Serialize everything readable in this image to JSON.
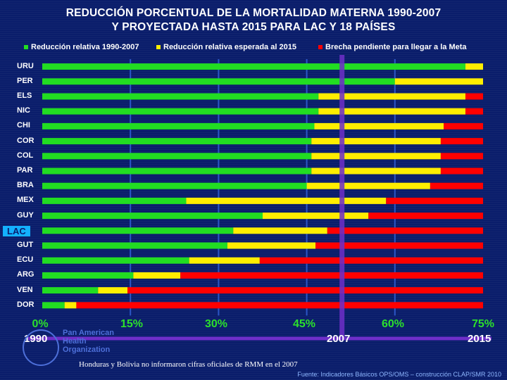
{
  "chart_data": {
    "type": "bar",
    "orientation": "horizontal",
    "stacked": true,
    "title": "REDUCCIÓN PORCENTUAL DE LA MORTALIDAD MATERNA 1990-2007",
    "subtitle": "Y PROYECTADA HASTA 2015 PARA LAC Y 18 PAÍSES",
    "categories": [
      "URU",
      "PER",
      "ELS",
      "NIC",
      "CHI",
      "COR",
      "COL",
      "PAR",
      "BRA",
      "MEX",
      "GUY",
      "LAC",
      "GUT",
      "ECU",
      "ARG",
      "VEN",
      "DOR"
    ],
    "series": [
      {
        "name": "Reducción relativa 1990-2007",
        "color": "#22dd22",
        "values": [
          72.0,
          60.0,
          47.0,
          47.0,
          46.3,
          45.8,
          45.8,
          45.8,
          45.0,
          24.5,
          37.5,
          32.5,
          31.5,
          25.0,
          15.5,
          9.5,
          3.8
        ]
      },
      {
        "name": "Reducción relativa esperada al 2015",
        "color": "#ffee00",
        "values": [
          3.0,
          15.0,
          25.0,
          25.0,
          22.0,
          22.0,
          22.0,
          22.0,
          21.0,
          34.0,
          18.0,
          16.0,
          15.0,
          12.0,
          8.0,
          5.0,
          2.0
        ]
      },
      {
        "name": "Brecha pendiente para llegar a la Meta",
        "color": "#ff0000",
        "values": [
          0.0,
          0.0,
          3.0,
          3.0,
          6.7,
          7.2,
          7.2,
          7.2,
          9.0,
          16.5,
          19.5,
          26.5,
          28.5,
          38.0,
          51.5,
          60.5,
          69.2
        ]
      }
    ],
    "highlighted_category": "LAC",
    "x_ticks": [
      "0%",
      "15%",
      "30%",
      "45%",
      "60%",
      "75%"
    ],
    "xlim": [
      0,
      75
    ],
    "grid": "vertical",
    "legend": "top",
    "markers": [
      {
        "label": "1990",
        "x": 0
      },
      {
        "label": "2007",
        "x": 51
      },
      {
        "label": "2015",
        "x": 75
      }
    ],
    "colors": {
      "background": "#0a1d6b",
      "grid": "#2b56c6",
      "marker_line": "#6e2fc9",
      "tick": "#2ce02c",
      "lac_badge": "#13b0ff"
    }
  },
  "logo": {
    "name_lines": [
      "Pan American",
      "Health",
      "Organization"
    ]
  },
  "footnote": "Honduras y Bolivia no informaron cifras oficiales de RMM en el 2007",
  "source": "Fuente: Indicadores Básicos OPS/OMS – construcción CLAP/SMR 2010"
}
